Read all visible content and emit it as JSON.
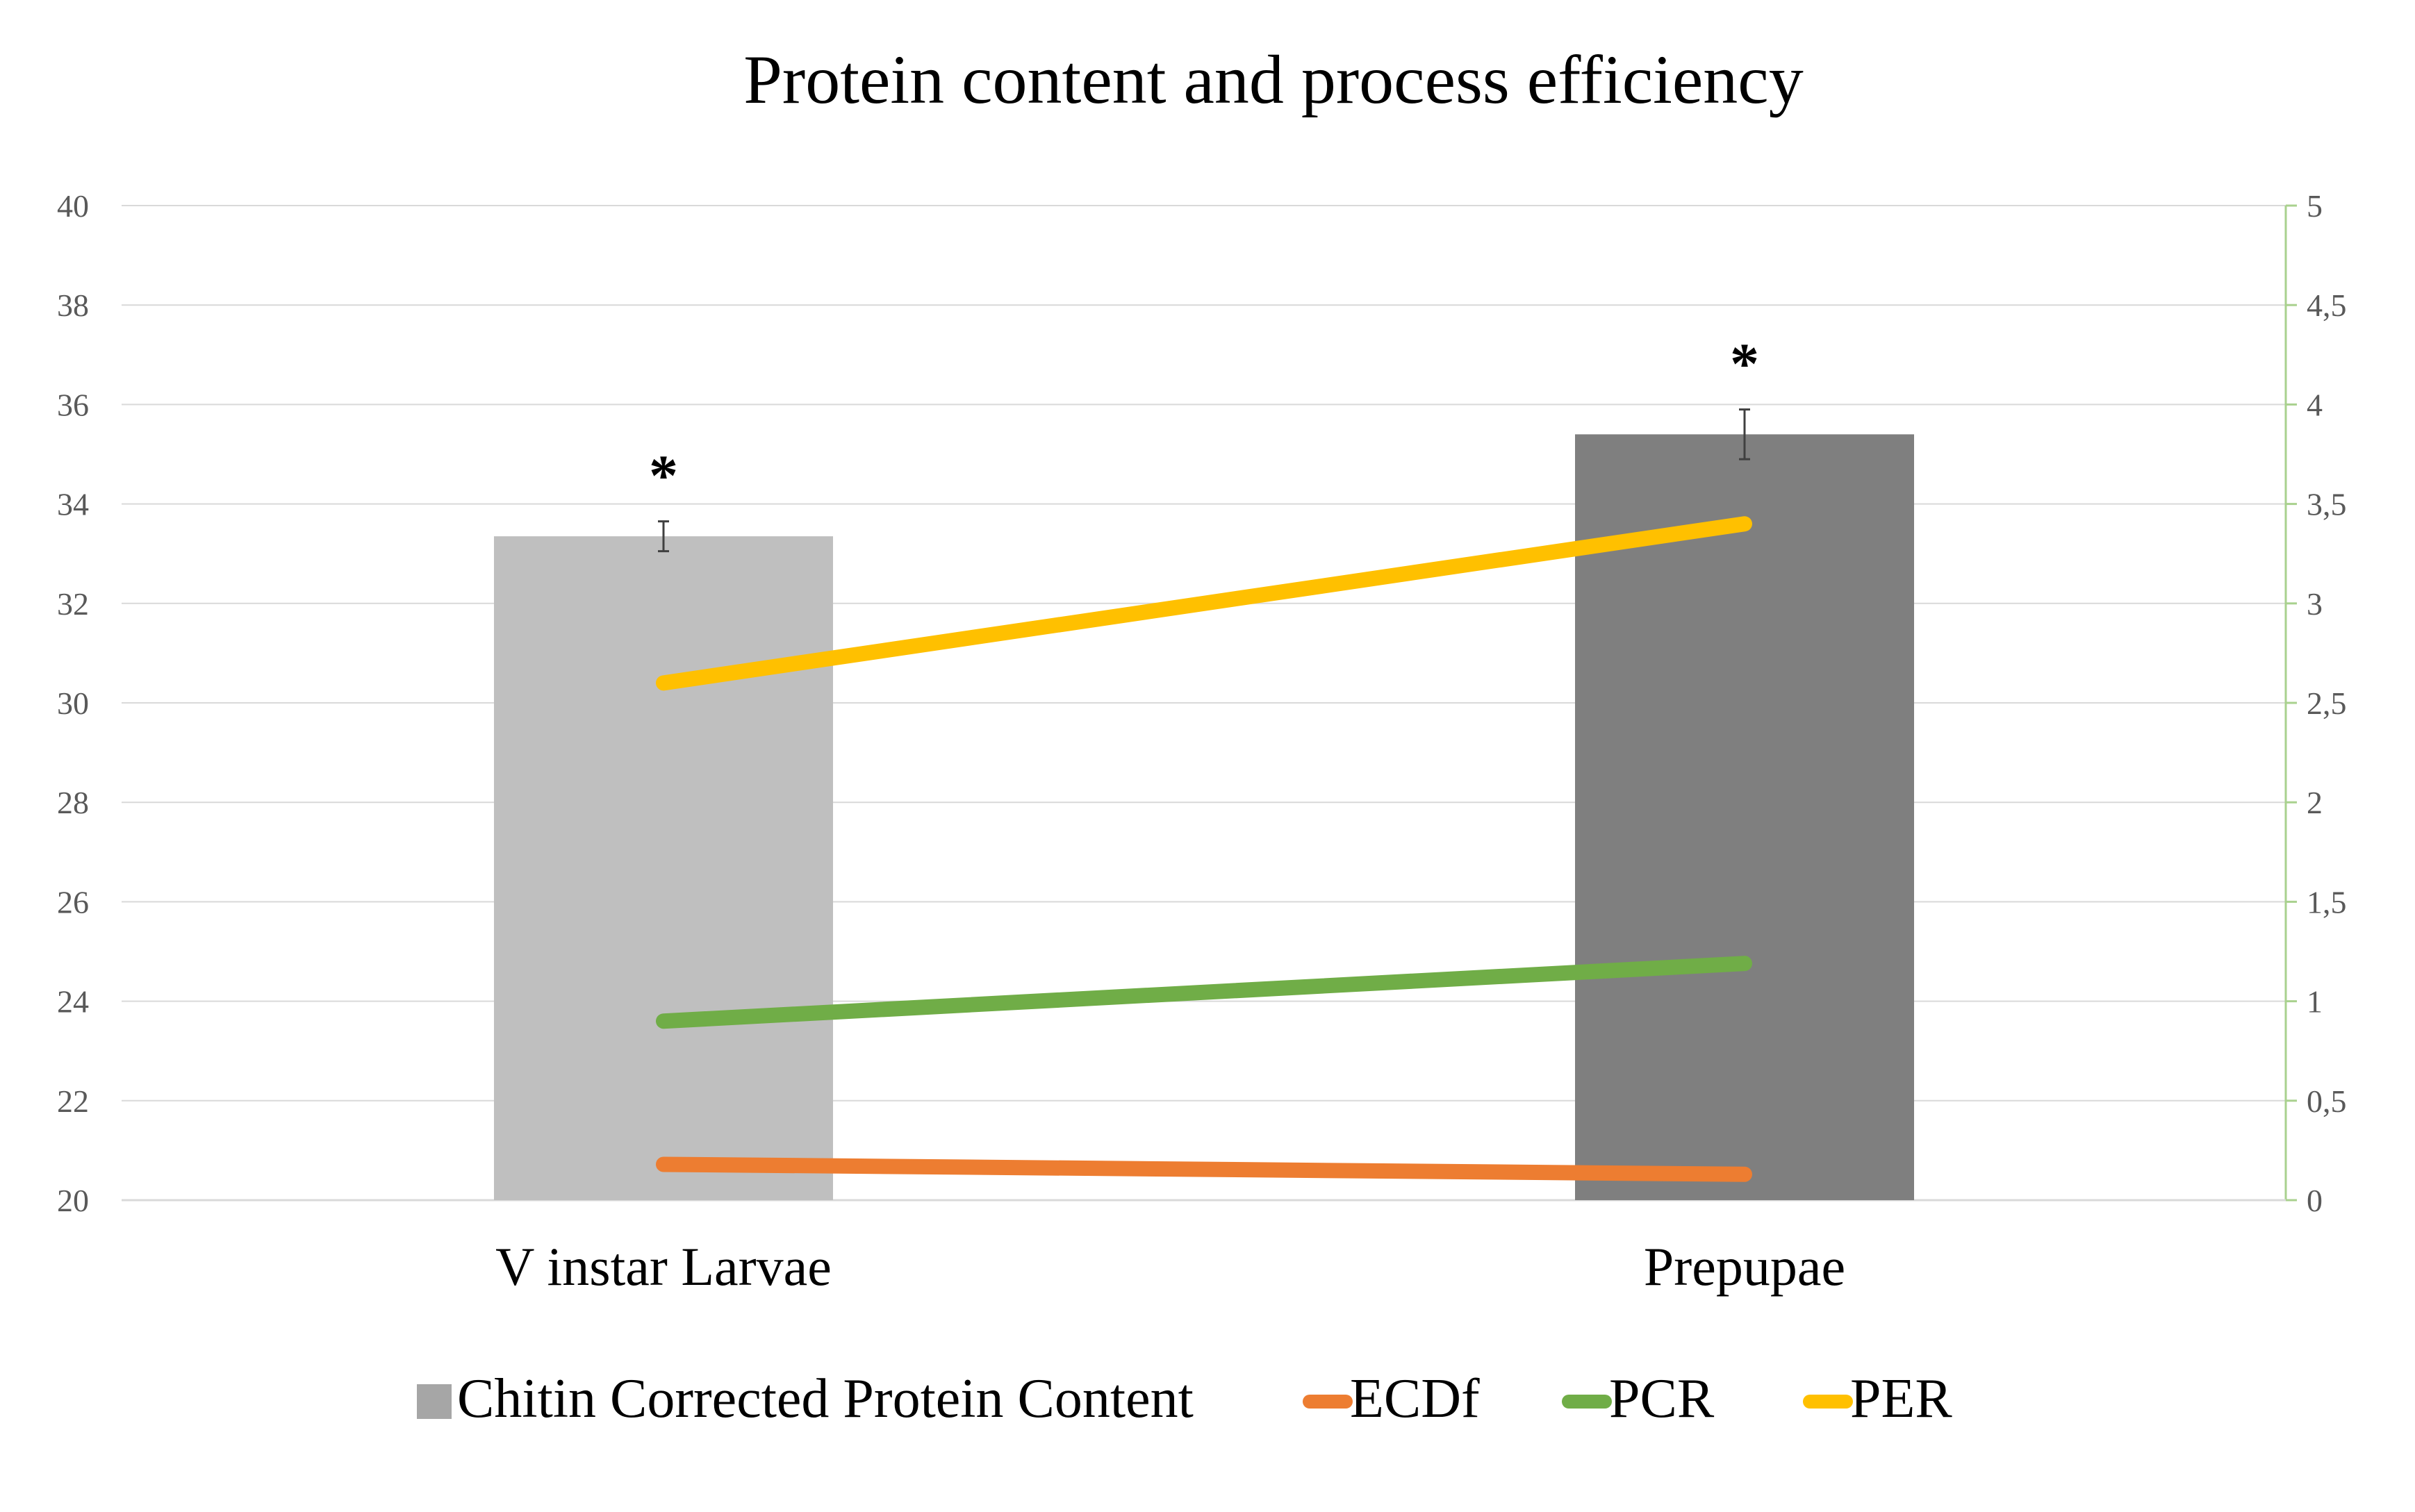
{
  "chart_data": {
    "type": "bar+line",
    "title": "Protein content and process efficiency",
    "categories": [
      "V instar Larvae",
      "Prepupae"
    ],
    "left_axis": {
      "ylim": [
        20,
        40
      ],
      "ticks": [
        "20",
        "22",
        "24",
        "26",
        "28",
        "30",
        "32",
        "34",
        "36",
        "38",
        "40"
      ]
    },
    "right_axis": {
      "ylim": [
        0,
        5
      ],
      "ticks": [
        "0",
        "0,5",
        "1",
        "1,5",
        "2",
        "2,5",
        "3",
        "3,5",
        "4",
        "4,5",
        "5"
      ]
    },
    "bars": {
      "name": "Chitin Corrected Protein Content",
      "axis": "left",
      "values": [
        33.35,
        35.4
      ],
      "errors": [
        0.3,
        0.5
      ],
      "colors": [
        "#bfbfbf",
        "#7f7f7f"
      ],
      "significance": [
        "*",
        "*"
      ]
    },
    "series": [
      {
        "name": "ECDf",
        "axis": "right",
        "values": [
          0.18,
          0.13
        ],
        "color": "#ed7d31"
      },
      {
        "name": "PCR",
        "axis": "right",
        "values": [
          0.9,
          1.19
        ],
        "color": "#70ad47"
      },
      {
        "name": "PER",
        "axis": "right",
        "values": [
          2.6,
          3.4
        ],
        "color": "#ffc000"
      }
    ],
    "legend": {
      "position": "bottom",
      "items": [
        {
          "label": "Chitin Corrected Protein Content",
          "swatch": "square",
          "color": "#a6a6a6"
        },
        {
          "label": "ECDf",
          "swatch": "line",
          "color": "#ed7d31"
        },
        {
          "label": "PCR",
          "swatch": "line",
          "color": "#70ad47"
        },
        {
          "label": "PER",
          "swatch": "line",
          "color": "#ffc000"
        }
      ]
    },
    "grid": true
  }
}
